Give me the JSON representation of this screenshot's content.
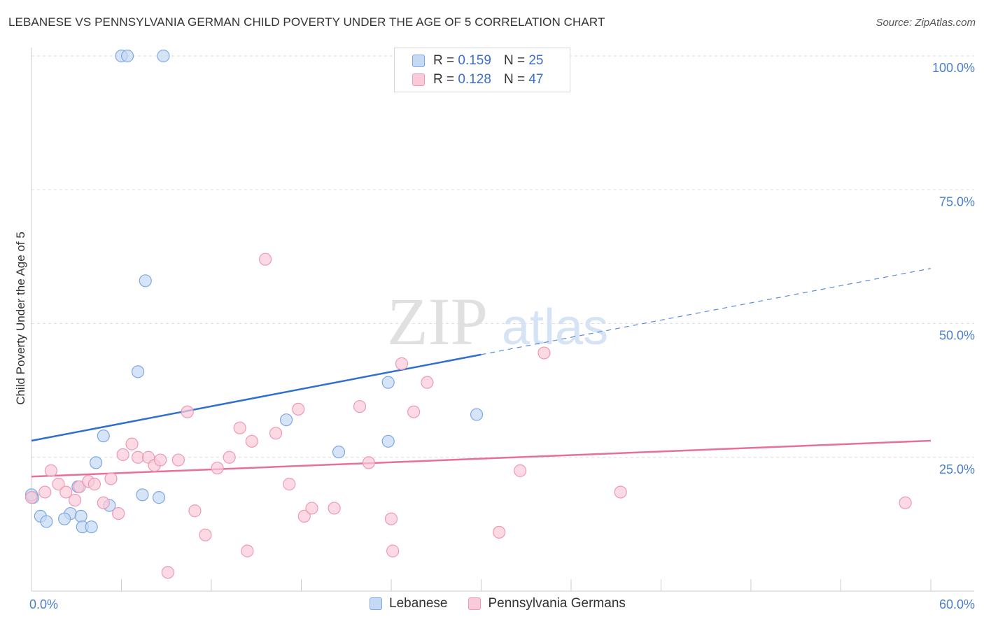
{
  "header": {
    "title": "LEBANESE VS PENNSYLVANIA GERMAN CHILD POVERTY UNDER THE AGE OF 5 CORRELATION CHART",
    "source": "Source: ZipAtlas.com"
  },
  "watermark": {
    "zip": "ZIP",
    "atlas": "atlas"
  },
  "legend": {
    "r_label": "R =",
    "n_label": "N =",
    "rows": [
      {
        "r": "0.159",
        "n": "25"
      },
      {
        "r": "0.128",
        "n": "47"
      }
    ]
  },
  "colors": {
    "lebanese_fill": "#c5d9f5",
    "lebanese_stroke": "#7fa8e2",
    "lebanese_line": "#2f6fd0",
    "pa_fill": "#f9cad8",
    "pa_stroke": "#ee99b5",
    "pa_line": "#e76f98",
    "grid": "#dddddd",
    "axis_text": "#4a7fcf"
  },
  "chart_data": {
    "type": "scatter",
    "title": "LEBANESE VS PENNSYLVANIA GERMAN CHILD POVERTY UNDER THE AGE OF 5 CORRELATION CHART",
    "xlabel": "",
    "ylabel": "Child Poverty Under the Age of 5",
    "xlim": [
      0,
      60
    ],
    "ylim": [
      0,
      100
    ],
    "x_tick_labels": [
      "0.0%",
      "60.0%"
    ],
    "y_ticks": [
      25,
      50,
      75,
      100
    ],
    "y_tick_labels": [
      "25.0%",
      "50.0%",
      "75.0%",
      "100.0%"
    ],
    "grid": true,
    "legend_position": "top-center",
    "series": [
      {
        "name": "Lebanese",
        "r": 0.159,
        "n": 25,
        "points": [
          [
            0.1,
            17.5
          ],
          [
            0.6,
            14
          ],
          [
            1.0,
            13
          ],
          [
            2.6,
            14.5
          ],
          [
            3.1,
            19.5
          ],
          [
            2.2,
            13.5
          ],
          [
            3.3,
            14
          ],
          [
            3.4,
            12
          ],
          [
            4.0,
            12
          ],
          [
            4.3,
            24
          ],
          [
            4.8,
            29
          ],
          [
            5.2,
            16
          ],
          [
            6.0,
            100
          ],
          [
            6.4,
            100
          ],
          [
            8.8,
            100
          ],
          [
            7.1,
            41
          ],
          [
            7.6,
            58
          ],
          [
            7.4,
            18
          ],
          [
            8.5,
            17.5
          ],
          [
            17.0,
            32
          ],
          [
            20.5,
            26
          ],
          [
            23.8,
            39
          ],
          [
            23.8,
            28
          ],
          [
            29.7,
            33
          ],
          [
            0.0,
            18
          ]
        ],
        "trend": {
          "x_start": 0,
          "y_start": 28.1,
          "x_solid_end": 30,
          "y_solid_end": 44.2,
          "x_end": 60,
          "y_end": 60.3
        }
      },
      {
        "name": "Pennsylvania Germans",
        "r": 0.128,
        "n": 47,
        "points": [
          [
            0.0,
            17.5
          ],
          [
            0.9,
            18.5
          ],
          [
            1.3,
            22.5
          ],
          [
            1.8,
            20
          ],
          [
            2.3,
            18.5
          ],
          [
            2.9,
            17
          ],
          [
            3.2,
            19.5
          ],
          [
            3.8,
            20.5
          ],
          [
            4.2,
            20
          ],
          [
            4.8,
            16.5
          ],
          [
            5.3,
            21
          ],
          [
            5.8,
            14.5
          ],
          [
            6.1,
            25.5
          ],
          [
            6.7,
            27.5
          ],
          [
            7.1,
            25
          ],
          [
            7.8,
            25
          ],
          [
            8.2,
            23.5
          ],
          [
            8.6,
            24.5
          ],
          [
            9.1,
            3.5
          ],
          [
            9.8,
            24.5
          ],
          [
            10.4,
            33.5
          ],
          [
            10.9,
            15
          ],
          [
            11.6,
            10.5
          ],
          [
            12.4,
            23
          ],
          [
            13.2,
            25
          ],
          [
            13.9,
            30.5
          ],
          [
            14.4,
            7.5
          ],
          [
            14.7,
            28
          ],
          [
            15.6,
            62
          ],
          [
            16.3,
            29.5
          ],
          [
            17.2,
            20
          ],
          [
            17.8,
            34
          ],
          [
            18.2,
            14
          ],
          [
            18.7,
            15.5
          ],
          [
            20.2,
            15.5
          ],
          [
            21.9,
            34.5
          ],
          [
            22.5,
            24
          ],
          [
            24.0,
            13.5
          ],
          [
            24.1,
            7.5
          ],
          [
            24.7,
            42.5
          ],
          [
            25.5,
            33.5
          ],
          [
            26.4,
            39
          ],
          [
            31.2,
            11
          ],
          [
            32.6,
            22.5
          ],
          [
            34.2,
            44.5
          ],
          [
            39.3,
            18.5
          ],
          [
            58.3,
            16.5
          ]
        ],
        "trend": {
          "x_start": 0,
          "y_start": 21.4,
          "x_end": 60,
          "y_end": 28.1
        }
      }
    ]
  },
  "bottom_legend": {
    "items": [
      "Lebanese",
      "Pennsylvania Germans"
    ]
  }
}
